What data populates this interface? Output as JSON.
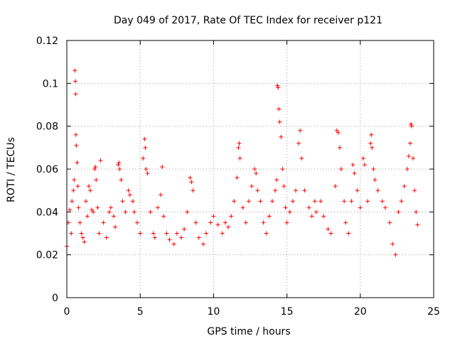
{
  "chart_data": {
    "type": "scatter",
    "title": "Day 049 of 2017, Rate Of TEC Index for receiver p121",
    "xlabel": "GPS time / hours",
    "ylabel": "ROTI / TECUs",
    "xlim": [
      0,
      25
    ],
    "ylim": [
      0,
      0.12
    ],
    "xticks": [
      0,
      5,
      10,
      15,
      20,
      25
    ],
    "yticks": [
      0,
      0.02,
      0.04,
      0.06,
      0.08,
      0.1,
      0.12
    ],
    "xtick_labels": [
      "0",
      "5",
      "10",
      "15",
      "20",
      "25"
    ],
    "ytick_labels": [
      "0",
      "0.02",
      "0.04",
      "0.06",
      "0.08",
      "0.1",
      "0.12"
    ],
    "grid": true,
    "marker": "+",
    "color": "#ff0000",
    "series": [
      {
        "points": [
          [
            0.0,
            0.024
          ],
          [
            0.1,
            0.035
          ],
          [
            0.2,
            0.041
          ],
          [
            0.3,
            0.03
          ],
          [
            0.35,
            0.045
          ],
          [
            0.45,
            0.05
          ],
          [
            0.5,
            0.055
          ],
          [
            0.55,
            0.106
          ],
          [
            0.58,
            0.101
          ],
          [
            0.6,
            0.095
          ],
          [
            0.62,
            0.076
          ],
          [
            0.65,
            0.071
          ],
          [
            0.7,
            0.063
          ],
          [
            0.75,
            0.052
          ],
          [
            0.8,
            0.042
          ],
          [
            0.9,
            0.035
          ],
          [
            1.0,
            0.03
          ],
          [
            1.1,
            0.028
          ],
          [
            1.2,
            0.026
          ],
          [
            1.3,
            0.045
          ],
          [
            1.4,
            0.038
          ],
          [
            1.5,
            0.052
          ],
          [
            1.6,
            0.05
          ],
          [
            1.7,
            0.041
          ],
          [
            1.8,
            0.04
          ],
          [
            1.9,
            0.06
          ],
          [
            1.95,
            0.061
          ],
          [
            2.0,
            0.055
          ],
          [
            2.1,
            0.042
          ],
          [
            2.2,
            0.03
          ],
          [
            2.3,
            0.064
          ],
          [
            2.5,
            0.035
          ],
          [
            2.7,
            0.028
          ],
          [
            2.9,
            0.04
          ],
          [
            3.0,
            0.042
          ],
          [
            3.2,
            0.038
          ],
          [
            3.3,
            0.033
          ],
          [
            3.5,
            0.062
          ],
          [
            3.55,
            0.063
          ],
          [
            3.6,
            0.06
          ],
          [
            3.7,
            0.055
          ],
          [
            3.8,
            0.045
          ],
          [
            4.0,
            0.04
          ],
          [
            4.2,
            0.05
          ],
          [
            4.3,
            0.048
          ],
          [
            4.5,
            0.045
          ],
          [
            4.6,
            0.04
          ],
          [
            4.8,
            0.035
          ],
          [
            5.0,
            0.03
          ],
          [
            5.2,
            0.065
          ],
          [
            5.3,
            0.074
          ],
          [
            5.35,
            0.07
          ],
          [
            5.4,
            0.06
          ],
          [
            5.5,
            0.058
          ],
          [
            5.7,
            0.04
          ],
          [
            5.9,
            0.03
          ],
          [
            6.0,
            0.028
          ],
          [
            6.2,
            0.042
          ],
          [
            6.4,
            0.048
          ],
          [
            6.5,
            0.061
          ],
          [
            6.6,
            0.038
          ],
          [
            6.8,
            0.03
          ],
          [
            7.0,
            0.027
          ],
          [
            7.3,
            0.025
          ],
          [
            7.5,
            0.03
          ],
          [
            7.8,
            0.028
          ],
          [
            8.0,
            0.032
          ],
          [
            8.2,
            0.04
          ],
          [
            8.4,
            0.056
          ],
          [
            8.5,
            0.054
          ],
          [
            8.6,
            0.05
          ],
          [
            8.8,
            0.035
          ],
          [
            9.0,
            0.028
          ],
          [
            9.3,
            0.025
          ],
          [
            9.5,
            0.03
          ],
          [
            9.8,
            0.035
          ],
          [
            10.0,
            0.038
          ],
          [
            10.3,
            0.034
          ],
          [
            10.6,
            0.03
          ],
          [
            10.8,
            0.035
          ],
          [
            11.0,
            0.033
          ],
          [
            11.2,
            0.038
          ],
          [
            11.4,
            0.045
          ],
          [
            11.6,
            0.056
          ],
          [
            11.7,
            0.07
          ],
          [
            11.75,
            0.072
          ],
          [
            11.8,
            0.065
          ],
          [
            12.0,
            0.042
          ],
          [
            12.2,
            0.035
          ],
          [
            12.4,
            0.045
          ],
          [
            12.6,
            0.052
          ],
          [
            12.8,
            0.06
          ],
          [
            12.9,
            0.058
          ],
          [
            13.0,
            0.05
          ],
          [
            13.2,
            0.045
          ],
          [
            13.4,
            0.035
          ],
          [
            13.6,
            0.03
          ],
          [
            13.8,
            0.038
          ],
          [
            14.0,
            0.045
          ],
          [
            14.2,
            0.05
          ],
          [
            14.3,
            0.055
          ],
          [
            14.35,
            0.099
          ],
          [
            14.4,
            0.098
          ],
          [
            14.45,
            0.088
          ],
          [
            14.5,
            0.082
          ],
          [
            14.6,
            0.075
          ],
          [
            14.7,
            0.06
          ],
          [
            14.8,
            0.052
          ],
          [
            14.9,
            0.042
          ],
          [
            15.0,
            0.035
          ],
          [
            15.2,
            0.04
          ],
          [
            15.4,
            0.045
          ],
          [
            15.6,
            0.05
          ],
          [
            15.8,
            0.072
          ],
          [
            15.9,
            0.078
          ],
          [
            16.0,
            0.065
          ],
          [
            16.2,
            0.05
          ],
          [
            16.5,
            0.042
          ],
          [
            16.7,
            0.038
          ],
          [
            16.9,
            0.045
          ],
          [
            17.0,
            0.04
          ],
          [
            17.3,
            0.045
          ],
          [
            17.5,
            0.038
          ],
          [
            17.8,
            0.032
          ],
          [
            18.0,
            0.03
          ],
          [
            18.3,
            0.052
          ],
          [
            18.4,
            0.078
          ],
          [
            18.5,
            0.077
          ],
          [
            18.6,
            0.07
          ],
          [
            18.7,
            0.06
          ],
          [
            18.9,
            0.045
          ],
          [
            19.0,
            0.035
          ],
          [
            19.2,
            0.03
          ],
          [
            19.4,
            0.045
          ],
          [
            19.5,
            0.062
          ],
          [
            19.6,
            0.058
          ],
          [
            19.8,
            0.05
          ],
          [
            20.0,
            0.042
          ],
          [
            20.2,
            0.065
          ],
          [
            20.3,
            0.062
          ],
          [
            20.5,
            0.045
          ],
          [
            20.7,
            0.072
          ],
          [
            20.75,
            0.076
          ],
          [
            20.8,
            0.07
          ],
          [
            20.9,
            0.06
          ],
          [
            21.0,
            0.055
          ],
          [
            21.2,
            0.05
          ],
          [
            21.5,
            0.045
          ],
          [
            21.7,
            0.042
          ],
          [
            22.0,
            0.035
          ],
          [
            22.2,
            0.025
          ],
          [
            22.4,
            0.02
          ],
          [
            22.6,
            0.04
          ],
          [
            22.8,
            0.045
          ],
          [
            23.0,
            0.052
          ],
          [
            23.2,
            0.06
          ],
          [
            23.3,
            0.066
          ],
          [
            23.4,
            0.072
          ],
          [
            23.45,
            0.081
          ],
          [
            23.5,
            0.08
          ],
          [
            23.6,
            0.065
          ],
          [
            23.7,
            0.05
          ],
          [
            23.8,
            0.04
          ],
          [
            23.9,
            0.034
          ]
        ]
      }
    ]
  }
}
